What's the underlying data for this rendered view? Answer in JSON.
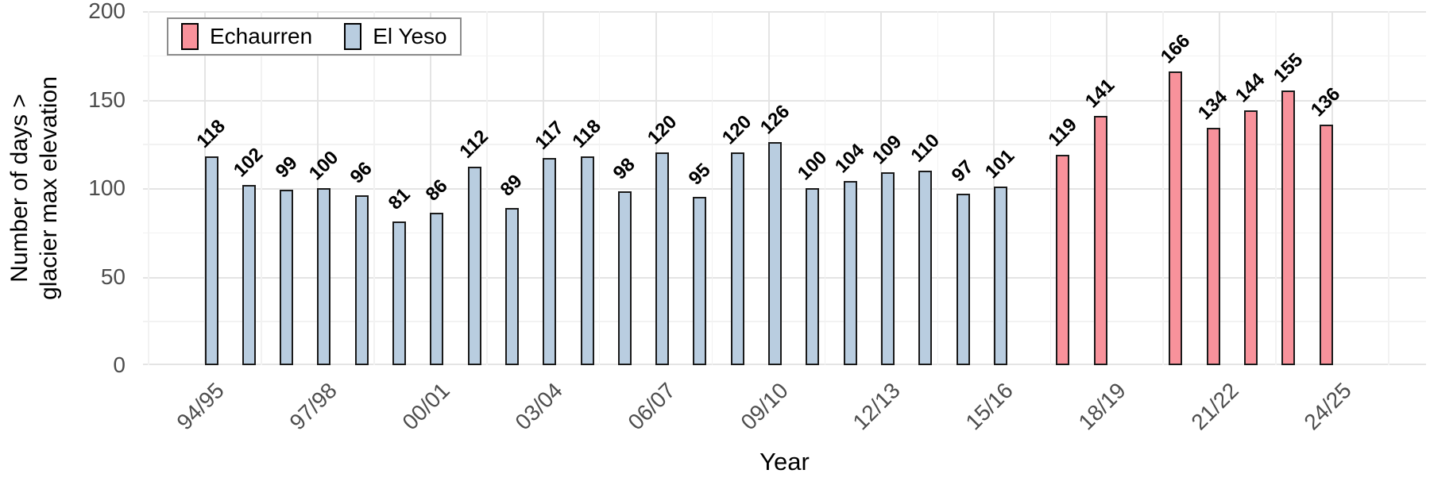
{
  "chart_data": {
    "type": "bar",
    "title": "",
    "xlabel": "Year",
    "ylabel_lines": [
      "Number of days >",
      "glacier max elevation"
    ],
    "ylim": [
      0,
      200
    ],
    "yticks": [
      0,
      50,
      100,
      150,
      200
    ],
    "grid": "major+minor, light gray on white",
    "legend_position": "top-left inside plot",
    "x_axis_years": [
      "94/95",
      "95/96",
      "96/97",
      "97/98",
      "98/99",
      "99/00",
      "00/01",
      "01/02",
      "02/03",
      "03/04",
      "04/05",
      "05/06",
      "06/07",
      "07/08",
      "08/09",
      "09/10",
      "10/11",
      "11/12",
      "12/13",
      "13/14",
      "14/15",
      "15/16",
      "16/17",
      "17/18",
      "18/19",
      "19/20",
      "20/21",
      "21/22",
      "22/23",
      "23/24",
      "24/25"
    ],
    "x_tick_every": 3,
    "legend": [
      {
        "name": "Echaurren",
        "color": "#f8929b"
      },
      {
        "name": "El Yeso",
        "color": "#b9cde0"
      }
    ],
    "series": [
      {
        "name": "El Yeso",
        "color": "#b9cde0",
        "points": [
          [
            "94/95",
            118
          ],
          [
            "95/96",
            102
          ],
          [
            "96/97",
            99
          ],
          [
            "97/98",
            100
          ],
          [
            "98/99",
            96
          ],
          [
            "99/00",
            81
          ],
          [
            "00/01",
            86
          ],
          [
            "01/02",
            112
          ],
          [
            "02/03",
            89
          ],
          [
            "03/04",
            117
          ],
          [
            "04/05",
            118
          ],
          [
            "05/06",
            98
          ],
          [
            "06/07",
            120
          ],
          [
            "07/08",
            95
          ],
          [
            "08/09",
            120
          ],
          [
            "09/10",
            126
          ],
          [
            "10/11",
            100
          ],
          [
            "11/12",
            104
          ],
          [
            "12/13",
            109
          ],
          [
            "13/14",
            110
          ],
          [
            "14/15",
            97
          ],
          [
            "15/16",
            101
          ]
        ]
      },
      {
        "name": "Echaurren",
        "color": "#f8929b",
        "points": [
          [
            "17/18",
            119
          ],
          [
            "18/19",
            141
          ],
          [
            "20/21",
            166
          ],
          [
            "21/22",
            134
          ],
          [
            "22/23",
            144
          ],
          [
            "23/24",
            155
          ],
          [
            "24/25",
            136
          ]
        ]
      }
    ]
  },
  "styles": {
    "bar_border": "#1a1a1a",
    "grid_major": "#e4e4e4",
    "grid_minor": "#f2f2f2",
    "tick_label_color": "#4d4d4d",
    "background": "#ffffff"
  }
}
